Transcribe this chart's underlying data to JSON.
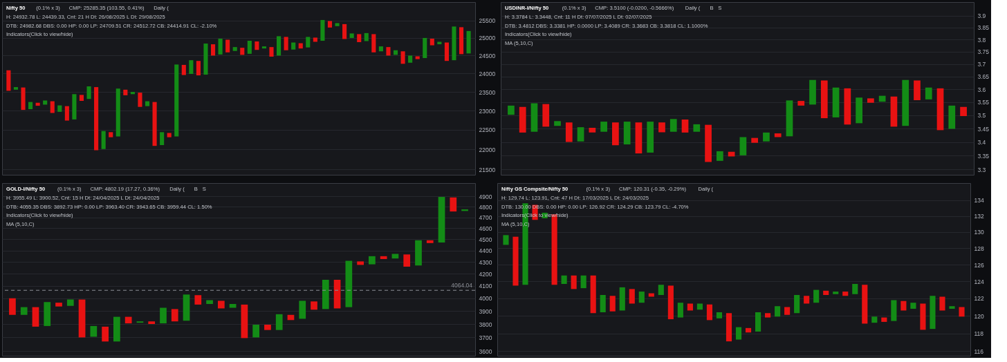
{
  "chart_data": [
    {
      "type": "bar",
      "title": "Nifty 50",
      "subtitle": "(0.1% x 3)",
      "annotations": [
        "CMP: 25285.35 (103.55, 0.41%)",
        "Daily (",
        "H: 24932.78 L: 24439.33, Cnt: 21 H Dt: 26/08/2025 L Dt: 29/08/2025",
        "DTB: 24982.68 DBS: 0.00 HP: 0.00 LP: 24709.51 CR: 24512.72 CB: 24414.91 CL: -2.10%",
        "Indicators(Click to view/hide)"
      ],
      "categories": [
        null,
        null,
        null,
        null,
        null,
        null,
        null,
        null,
        null,
        null,
        null,
        null,
        null,
        null,
        null,
        null,
        null,
        null,
        null,
        null,
        null,
        null,
        null,
        null,
        null,
        null,
        null,
        null,
        null,
        null,
        null,
        null,
        null,
        null,
        null,
        null,
        null,
        null,
        null,
        null,
        null,
        null,
        null,
        null,
        null,
        null,
        null,
        null,
        null,
        null,
        null,
        null,
        null,
        null,
        null,
        null,
        null,
        null,
        null,
        null,
        null,
        null,
        null,
        null
      ],
      "base": [
        23530,
        23560,
        23020,
        23040,
        23130,
        23160,
        22940,
        22970,
        22740,
        22770,
        23260,
        23310,
        21980,
        22010,
        22310,
        22330,
        23410,
        23440,
        23100,
        23120,
        22090,
        22110,
        22310,
        22330,
        23960,
        23990,
        23950,
        23970,
        24500,
        24530,
        24590,
        24630,
        24520,
        24550,
        24660,
        24700,
        24470,
        24500,
        24650,
        24670,
        24700,
        24730,
        24890,
        24920,
        25300,
        25340,
        24970,
        25000,
        24880,
        24910,
        24590,
        24620,
        24500,
        24520,
        24270,
        24300,
        24400,
        24430,
        24790,
        24820,
        24350,
        24370,
        24540,
        24560
      ],
      "values": [
        560,
        70,
        600,
        190,
        80,
        110,
        310,
        170,
        380,
        670,
        160,
        340,
        1650,
        460,
        130,
        1260,
        150,
        60,
        380,
        130,
        1140,
        330,
        110,
        1920,
        280,
        380,
        400,
        870,
        320,
        450,
        360,
        110,
        200,
        370,
        240,
        60,
        270,
        550,
        380,
        200,
        150,
        300,
        120,
        600,
        190,
        90,
        430,
        130,
        230,
        230,
        520,
        140,
        240,
        130,
        350,
        200,
        80,
        570,
        190,
        70,
        520,
        960,
        770,
        640
      ],
      "colors": [
        "#e81212",
        "#138c16",
        "#e81212",
        "#138c16",
        "#e81212",
        "#138c16",
        "#e81212",
        "#138c16",
        "#e81212",
        "#138c16",
        "#e81212",
        "#138c16",
        "#e81212",
        "#138c16",
        "#e81212",
        "#138c16",
        "#e81212",
        "#138c16",
        "#e81212",
        "#138c16",
        "#e81212",
        "#138c16",
        "#e81212",
        "#138c16",
        "#e81212",
        "#138c16",
        "#e81212",
        "#138c16",
        "#e81212",
        "#138c16",
        "#e81212",
        "#138c16",
        "#e81212",
        "#138c16",
        "#e81212",
        "#138c16",
        "#e81212",
        "#138c16",
        "#e81212",
        "#138c16",
        "#e81212",
        "#138c16",
        "#e81212",
        "#138c16",
        "#e81212",
        "#138c16",
        "#e81212",
        "#138c16",
        "#e81212",
        "#138c16",
        "#e81212",
        "#138c16",
        "#e81212",
        "#138c16",
        "#e81212",
        "#138c16",
        "#e81212",
        "#138c16",
        "#e81212",
        "#138c16",
        "#e81212",
        "#138c16",
        "#e81212",
        "#138c16"
      ],
      "ylim": [
        21370,
        26050
      ],
      "yticks": [
        21500,
        22000,
        22500,
        23000,
        23500,
        24000,
        24500,
        25000,
        25500
      ],
      "log": true,
      "grid": "y"
    },
    {
      "type": "bar",
      "title": "USDINR-I/Nifty 50",
      "subtitle": "(0.1% x 3)",
      "annotations": [
        "CMP: 3.5100 (-0.0200, -0.5666%)",
        "Daily (",
        "B",
        "S",
        "H: 3.3784 L: 3.3448, Cnt: 11 H Dt: 07/07/2025 L Dt: 02/07/2025",
        "DTB: 3.4812 DBS: 3.3381 HP: 0.0000 LP: 3.4089 CR: 3.3683 CB: 3.3818 CL: 1.1000%",
        "Indicators(Click to view/hide)",
        "MA (5,10,C)"
      ],
      "categories": [
        null,
        null,
        null,
        null,
        null,
        null,
        null,
        null,
        null,
        null,
        null,
        null,
        null,
        null,
        null,
        null,
        null,
        null,
        null,
        null,
        null,
        null,
        null,
        null,
        null,
        null,
        null,
        null,
        null,
        null,
        null,
        null,
        null,
        null,
        null,
        null,
        null,
        null,
        null,
        null
      ],
      "base": [
        3.502,
        3.435,
        3.438,
        3.457,
        3.46,
        3.4,
        3.402,
        3.435,
        3.438,
        3.388,
        3.391,
        3.358,
        3.361,
        3.436,
        3.438,
        3.435,
        3.438,
        3.327,
        3.331,
        3.347,
        3.351,
        3.397,
        3.402,
        3.418,
        3.421,
        3.537,
        3.541,
        3.489,
        3.492,
        3.465,
        3.47,
        3.548,
        3.552,
        3.457,
        3.46,
        3.558,
        3.561,
        3.444,
        3.449,
        3.497
      ],
      "values": [
        0.035,
        0.097,
        0.108,
        0.086,
        0.018,
        0.073,
        0.053,
        0.018,
        0.038,
        0.085,
        0.085,
        0.115,
        0.115,
        0.037,
        0.048,
        0.049,
        0.028,
        0.137,
        0.035,
        0.017,
        0.067,
        0.018,
        0.033,
        0.014,
        0.136,
        0.018,
        0.096,
        0.146,
        0.115,
        0.139,
        0.098,
        0.017,
        0.023,
        0.115,
        0.177,
        0.077,
        0.046,
        0.16,
        0.088,
        0.035
      ],
      "colors": [
        "#138c16",
        "#e81212",
        "#138c16",
        "#e81212",
        "#138c16",
        "#e81212",
        "#138c16",
        "#e81212",
        "#138c16",
        "#e81212",
        "#138c16",
        "#e81212",
        "#138c16",
        "#e81212",
        "#138c16",
        "#e81212",
        "#138c16",
        "#e81212",
        "#138c16",
        "#e81212",
        "#138c16",
        "#e81212",
        "#138c16",
        "#e81212",
        "#138c16",
        "#e81212",
        "#138c16",
        "#e81212",
        "#138c16",
        "#e81212",
        "#138c16",
        "#e81212",
        "#138c16",
        "#e81212",
        "#138c16",
        "#e81212",
        "#138c16",
        "#e81212",
        "#138c16",
        "#e81212"
      ],
      "ylim": [
        3.281,
        3.958
      ],
      "yticks": [
        3.3,
        3.35,
        3.4,
        3.45,
        3.5,
        3.55,
        3.6,
        3.65,
        3.7,
        3.75,
        3.8,
        3.85,
        3.9
      ],
      "log": true,
      "grid": "y"
    },
    {
      "type": "bar",
      "title": "GOLD-I/Nifty 50",
      "subtitle": "(0.1% x 3)",
      "annotations": [
        "CMP: 4802.19 (17.27, 0.36%)",
        "Daily (",
        "B",
        "S",
        "H: 3955.49 L: 3900.52, Cnt: 15 H Dt: 24/04/2025 L Dt: 24/04/2025",
        "DTB: 4055.35 DBS: 3892.73 HP: 0.00 LP: 3963.40 CR: 3943.65 CB: 3959.44 CL: 1.50%",
        "Indicators(Click to view/hide)",
        "MA (5,10,C)"
      ],
      "categories": [
        null,
        null,
        null,
        null,
        null,
        null,
        null,
        null,
        null,
        null,
        null,
        null,
        null,
        null,
        null,
        null,
        null,
        null,
        null,
        null,
        null,
        null,
        null,
        null,
        null,
        null,
        null,
        null,
        null,
        null,
        null,
        null,
        null,
        null,
        null,
        null,
        null,
        null,
        null,
        null
      ],
      "base": [
        3870,
        3870,
        3780,
        3785,
        3935,
        3940,
        3700,
        3705,
        3670,
        3670,
        3805,
        3810,
        3800,
        3805,
        3820,
        3825,
        3950,
        3955,
        3920,
        3925,
        3695,
        3700,
        3755,
        3755,
        3830,
        3840,
        3910,
        3915,
        3920,
        3930,
        4275,
        4280,
        4325,
        4330,
        4260,
        4270,
        4465,
        4470,
        4755,
        4760
      ],
      "values": [
        130,
        60,
        150,
        185,
        30,
        50,
        290,
        80,
        110,
        185,
        50,
        10,
        20,
        120,
        95,
        205,
        75,
        30,
        60,
        30,
        255,
        95,
        40,
        120,
        40,
        140,
        65,
        235,
        230,
        380,
        30,
        70,
        25,
        40,
        105,
        220,
        25,
        425,
        135,
        15
      ],
      "colors": [
        "#e81212",
        "#138c16",
        "#e81212",
        "#138c16",
        "#e81212",
        "#138c16",
        "#e81212",
        "#138c16",
        "#e81212",
        "#138c16",
        "#e81212",
        "#138c16",
        "#e81212",
        "#138c16",
        "#e81212",
        "#138c16",
        "#e81212",
        "#138c16",
        "#e81212",
        "#138c16",
        "#e81212",
        "#138c16",
        "#e81212",
        "#138c16",
        "#e81212",
        "#138c16",
        "#e81212",
        "#138c16",
        "#e81212",
        "#138c16",
        "#e81212",
        "#138c16",
        "#e81212",
        "#138c16",
        "#e81212",
        "#138c16",
        "#e81212",
        "#138c16",
        "#e81212",
        "#138c16"
      ],
      "ylim": [
        3567,
        5032
      ],
      "yticks": [
        3600,
        3700,
        3800,
        3900,
        4000,
        4100,
        4200,
        4300,
        4400,
        4500,
        4600,
        4700,
        4800,
        4900
      ],
      "log": true,
      "grid": "y",
      "ref_lines": [
        {
          "axis": "y",
          "value": 4064.04,
          "label": "4064.04",
          "color": "#8c8f96",
          "line_style": "dashed"
        }
      ]
    },
    {
      "type": "bar",
      "title": "Nifty GS Compsite/Nifty 50",
      "subtitle": "(0.1% x 3)",
      "annotations": [
        "CMP: 120.31 (-0.35, -0.29%)",
        "Daily (",
        "H: 129.74 L: 123.91, Cnt: 47 H Dt: 17/03/2025 L Dt: 24/03/2025",
        "DTB: 130.00 DBS: 0.00 HP: 0.00 LP: 126.92 CR: 124.29 CB: 123.79 CL: -4.70%",
        "Indicators(Click to view/hide)",
        "MA (5,10,C)"
      ],
      "categories": [
        null,
        null,
        null,
        null,
        null,
        null,
        null,
        null,
        null,
        null,
        null,
        null,
        null,
        null,
        null,
        null,
        null,
        null,
        null,
        null,
        null,
        null,
        null,
        null,
        null,
        null,
        null,
        null,
        null,
        null,
        null,
        null,
        null,
        null,
        null,
        null,
        null,
        null,
        null,
        null,
        null,
        null,
        null,
        null,
        null,
        null,
        null,
        null
      ],
      "base": [
        128.4,
        123.5,
        123.6,
        131.5,
        131.7,
        123.6,
        123.7,
        123.1,
        123.2,
        120.3,
        120.4,
        120.5,
        120.6,
        121.4,
        121.5,
        122.2,
        122.4,
        119.6,
        119.8,
        120.6,
        120.7,
        119.5,
        119.7,
        117.1,
        117.3,
        118.1,
        118.2,
        119.8,
        119.9,
        120.1,
        120.3,
        121.4,
        121.5,
        122.4,
        122.5,
        122.3,
        122.5,
        119.1,
        119.2,
        119.3,
        119.4,
        120.6,
        120.8,
        118.4,
        118.5,
        120.6,
        120.8,
        119.9
      ],
      "values": [
        1.2,
        5.9,
        10.0,
        1.9,
        0.7,
        8.6,
        1.0,
        1.6,
        1.5,
        4.4,
        2.0,
        1.8,
        2.7,
        1.7,
        1.3,
        0.4,
        1.2,
        3.9,
        1.7,
        0.8,
        0.7,
        1.8,
        0.7,
        3.2,
        1.4,
        0.5,
        2.2,
        0.5,
        1.2,
        0.9,
        2.1,
        0.9,
        1.5,
        0.5,
        0.3,
        0.5,
        1.2,
        4.5,
        0.7,
        0.5,
        2.4,
        1.1,
        0.7,
        3.0,
        3.8,
        1.6,
        0.3,
        1.1
      ],
      "colors": [
        "#138c16",
        "#e81212",
        "#138c16",
        "#e81212",
        "#138c16",
        "#e81212",
        "#138c16",
        "#e81212",
        "#138c16",
        "#e81212",
        "#138c16",
        "#e81212",
        "#138c16",
        "#e81212",
        "#138c16",
        "#e81212",
        "#138c16",
        "#e81212",
        "#138c16",
        "#e81212",
        "#138c16",
        "#e81212",
        "#138c16",
        "#e81212",
        "#138c16",
        "#e81212",
        "#138c16",
        "#e81212",
        "#138c16",
        "#e81212",
        "#138c16",
        "#e81212",
        "#138c16",
        "#e81212",
        "#138c16",
        "#e81212",
        "#138c16",
        "#e81212",
        "#138c16",
        "#e81212",
        "#138c16",
        "#e81212",
        "#138c16",
        "#e81212",
        "#138c16",
        "#e81212",
        "#138c16",
        "#e81212"
      ],
      "ylim": [
        115.5,
        136.2
      ],
      "yticks": [
        116,
        118,
        120,
        122,
        124,
        126,
        128,
        130,
        132,
        134
      ],
      "log": true,
      "grid": "y"
    }
  ]
}
